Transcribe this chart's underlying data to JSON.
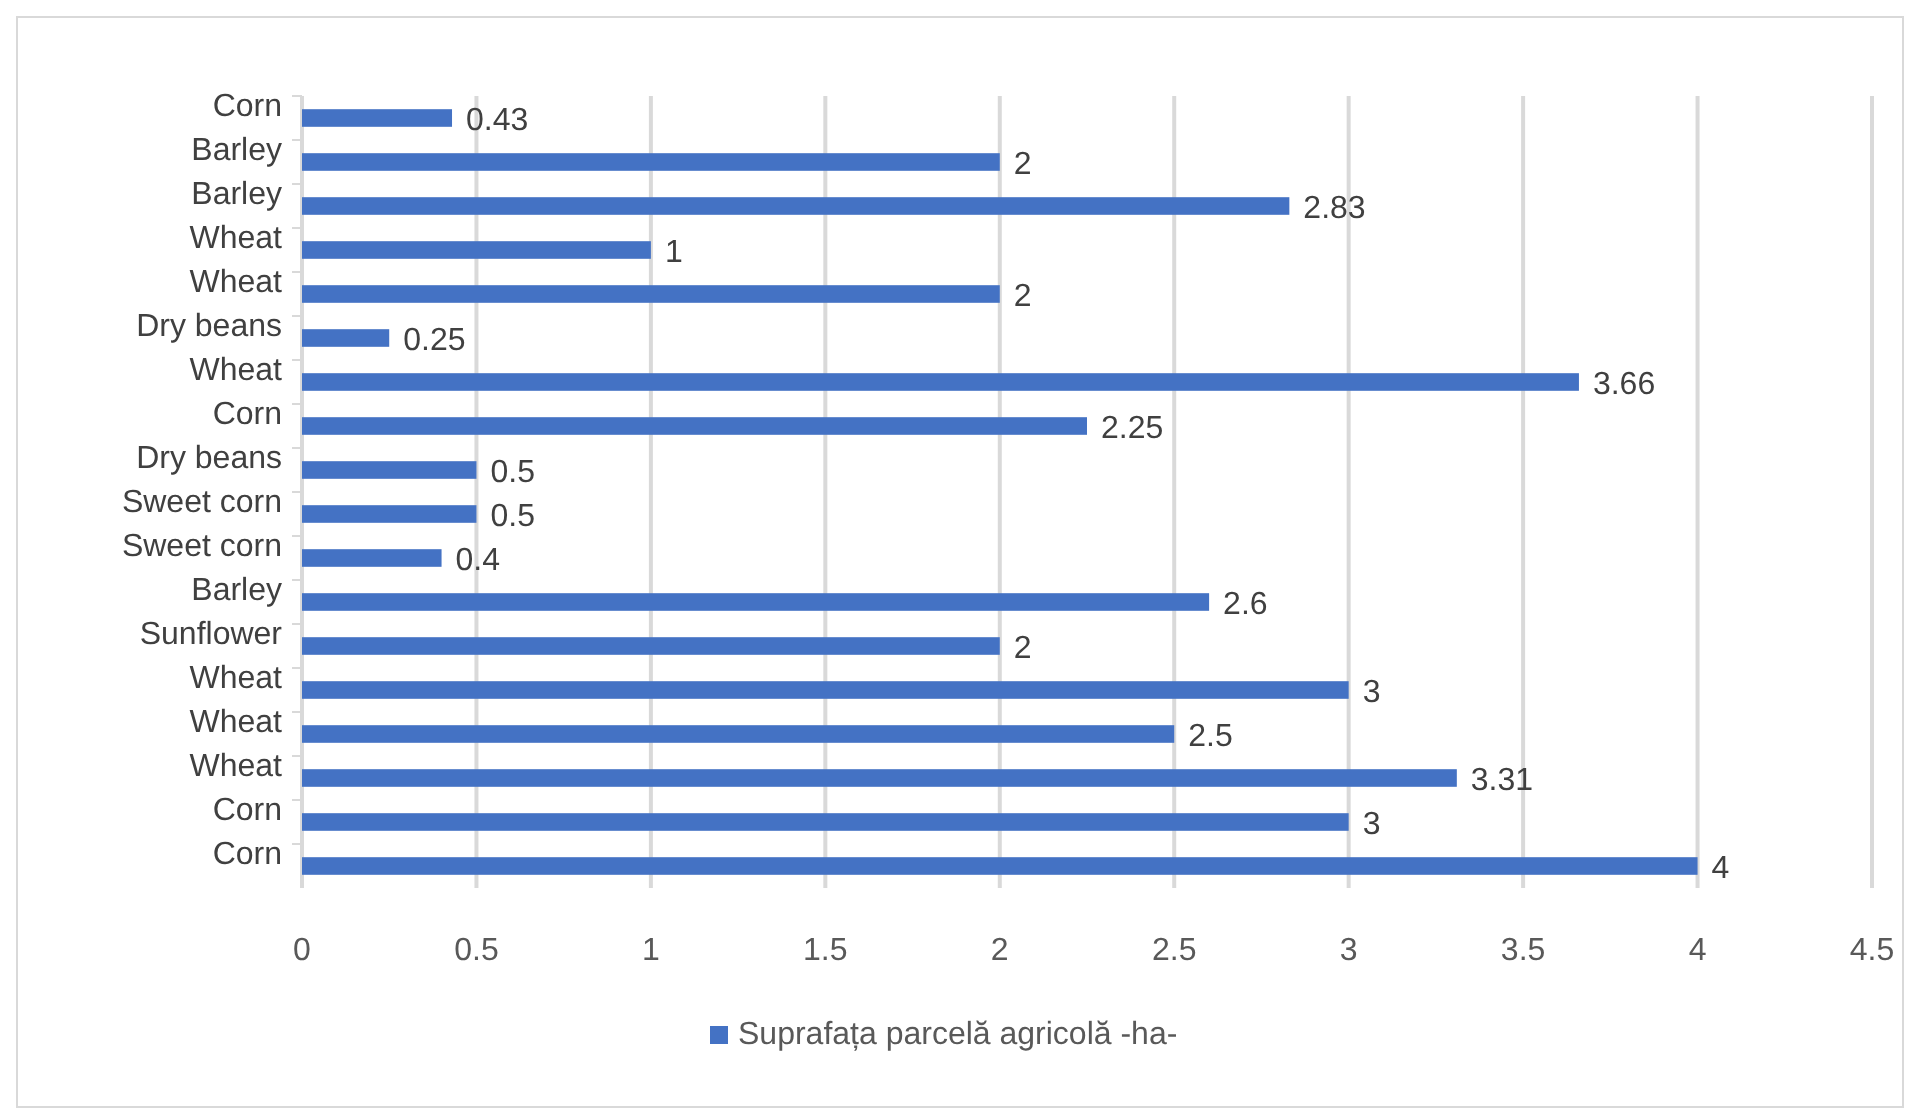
{
  "chart_data": {
    "type": "bar",
    "orientation": "horizontal",
    "categories": [
      "Corn",
      "Barley",
      "Barley",
      "Wheat",
      "Wheat",
      "Dry beans",
      "Wheat",
      "Corn",
      "Dry beans",
      "Sweet corn",
      "Sweet corn",
      "Barley",
      "Sunflower",
      "Wheat",
      "Wheat",
      "Wheat",
      "Corn",
      "Corn"
    ],
    "series": [
      {
        "name": "Suprafața parcelă agricolă -ha-",
        "color": "#4472c4",
        "values": [
          0.43,
          2,
          2.83,
          1,
          2,
          0.25,
          3.66,
          2.25,
          0.5,
          0.5,
          0.4,
          2.6,
          2,
          3,
          2.5,
          3.31,
          3,
          4
        ]
      }
    ],
    "xlim": [
      0,
      4.5
    ],
    "xticks": [
      0,
      0.5,
      1,
      1.5,
      2,
      2.5,
      3,
      3.5,
      4,
      4.5
    ],
    "grid": "x",
    "legend": "bottom",
    "data_labels": true
  }
}
